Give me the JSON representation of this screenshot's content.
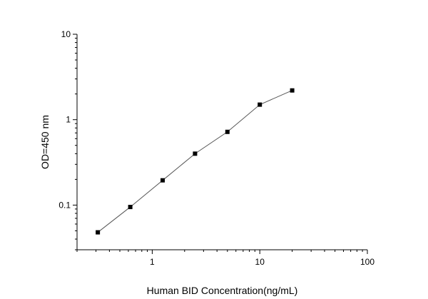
{
  "chart_data": {
    "type": "line",
    "xlabel": "Human BID Concentration(ng/mL)",
    "ylabel": "OD=450 nm",
    "x_scale": "log",
    "y_scale": "log",
    "xlim": [
      0.2,
      100
    ],
    "ylim": [
      0.03,
      10
    ],
    "x_ticks": [
      {
        "value": 1,
        "label": "1"
      },
      {
        "value": 10,
        "label": "10"
      },
      {
        "value": 100,
        "label": "100"
      }
    ],
    "y_ticks": [
      {
        "value": 0.1,
        "label": "0.1"
      },
      {
        "value": 1,
        "label": "1"
      },
      {
        "value": 10,
        "label": "10"
      }
    ],
    "grid": false,
    "legend": "none",
    "series": [
      {
        "x": [
          0.312,
          0.625,
          1.25,
          2.5,
          5,
          10,
          20
        ],
        "y": [
          0.048,
          0.095,
          0.195,
          0.4,
          0.72,
          1.5,
          2.2
        ]
      }
    ]
  }
}
